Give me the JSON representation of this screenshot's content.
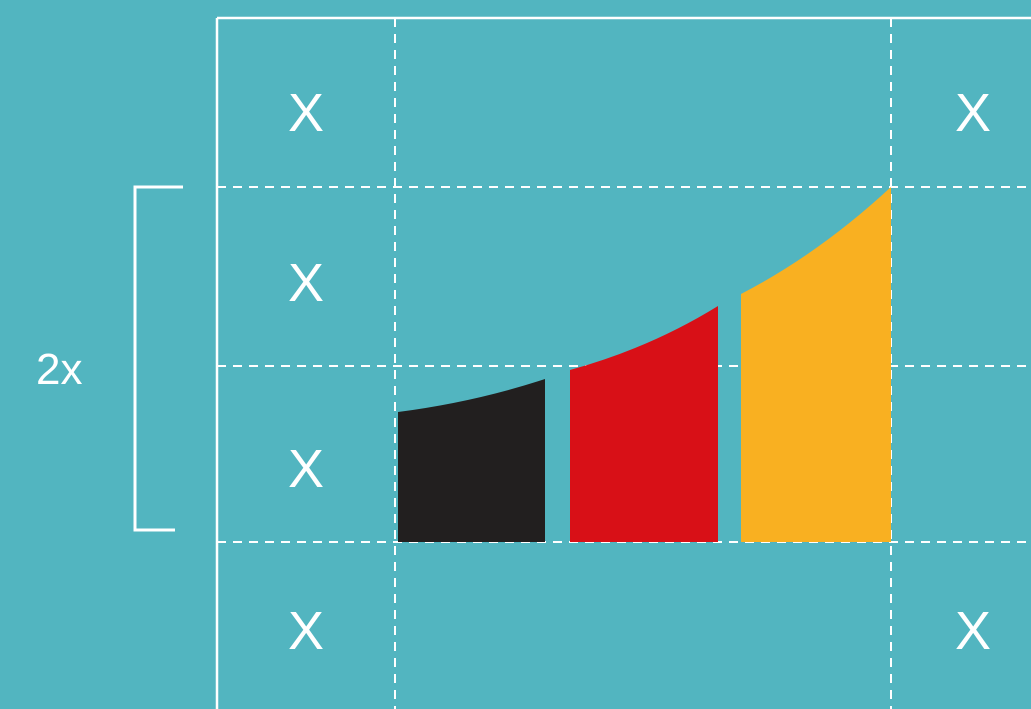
{
  "diagram": {
    "unit_mark": "X",
    "span_label": "2x",
    "colors": {
      "background": "#52b5c0",
      "guides": "#ffffff",
      "bar_black": "#221f1f",
      "bar_red": "#d81017",
      "bar_gold": "#f9b021"
    },
    "logo_bars": [
      "black",
      "red",
      "gold"
    ]
  }
}
